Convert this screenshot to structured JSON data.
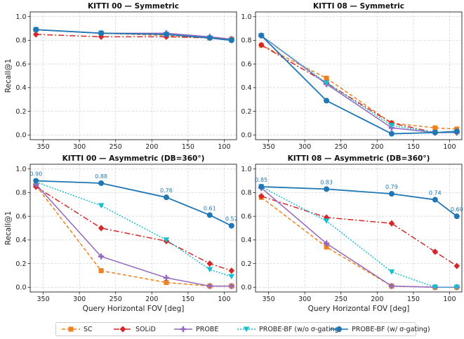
{
  "chart_data": [
    {
      "type": "line",
      "title": "KITTI 00 — Symmetric",
      "xlabel": "",
      "ylabel": "Recall@1",
      "xlim": [
        368,
        83
      ],
      "ylim": [
        -0.04,
        1.04
      ],
      "xticks": [
        350,
        300,
        250,
        200,
        150,
        100
      ],
      "yticks": [
        0.0,
        0.2,
        0.4,
        0.6,
        0.8,
        1.0
      ],
      "grid": true,
      "x": [
        360,
        270,
        180,
        120,
        90
      ],
      "series": [
        {
          "name": "SC",
          "values": [
            0.89,
            0.86,
            0.84,
            0.82,
            0.81
          ]
        },
        {
          "name": "SOLiD",
          "values": [
            0.85,
            0.83,
            0.83,
            0.82,
            0.81
          ]
        },
        {
          "name": "PROBE",
          "values": [
            0.89,
            0.86,
            0.86,
            0.83,
            0.81
          ]
        },
        {
          "name": "PROBE-BF (w/o σ-gating)",
          "values": [
            0.89,
            0.86,
            0.85,
            0.82,
            0.8
          ]
        },
        {
          "name": "PROBE-BF (w/ σ-gating)",
          "values": [
            0.89,
            0.86,
            0.85,
            0.82,
            0.8
          ]
        }
      ]
    },
    {
      "type": "line",
      "title": "KITTI 08 — Symmetric",
      "xlabel": "",
      "ylabel": "",
      "xlim": [
        368,
        83
      ],
      "ylim": [
        -0.04,
        1.04
      ],
      "xticks": [
        350,
        300,
        250,
        200,
        150,
        100
      ],
      "yticks": [
        0.0,
        0.2,
        0.4,
        0.6,
        0.8,
        1.0
      ],
      "grid": true,
      "x": [
        360,
        270,
        180,
        120,
        90
      ],
      "series": [
        {
          "name": "SC",
          "values": [
            0.76,
            0.48,
            0.1,
            0.06,
            0.05
          ]
        },
        {
          "name": "SOLiD",
          "values": [
            0.76,
            0.44,
            0.1,
            0.02,
            0.02
          ]
        },
        {
          "name": "PROBE",
          "values": [
            0.84,
            0.43,
            0.06,
            0.02,
            0.02
          ]
        },
        {
          "name": "PROBE-BF (w/o σ-gating)",
          "values": [
            0.84,
            0.44,
            0.08,
            0.02,
            0.02
          ]
        },
        {
          "name": "PROBE-BF (w/ σ-gating)",
          "values": [
            0.84,
            0.29,
            0.01,
            0.02,
            0.03
          ]
        }
      ]
    },
    {
      "type": "line",
      "title": "KITTI 00 — Asymmetric (DB=360°)",
      "xlabel": "Query Horizontal FOV [deg]",
      "ylabel": "Recall@1",
      "xlim": [
        368,
        83
      ],
      "ylim": [
        -0.04,
        1.04
      ],
      "xticks": [
        350,
        300,
        250,
        200,
        150,
        100
      ],
      "yticks": [
        0.0,
        0.2,
        0.4,
        0.6,
        0.8,
        1.0
      ],
      "grid": true,
      "x": [
        360,
        270,
        180,
        120,
        90
      ],
      "annotations": [
        "0.90",
        "0.88",
        "0.76",
        "0.61",
        "0.52"
      ],
      "series": [
        {
          "name": "SC",
          "values": [
            0.86,
            0.14,
            0.04,
            0.01,
            0.01
          ]
        },
        {
          "name": "SOLiD",
          "values": [
            0.85,
            0.5,
            0.39,
            0.2,
            0.14
          ]
        },
        {
          "name": "PROBE",
          "values": [
            0.87,
            0.26,
            0.08,
            0.01,
            0.01
          ]
        },
        {
          "name": "PROBE-BF (w/o σ-gating)",
          "values": [
            0.89,
            0.69,
            0.4,
            0.15,
            0.09
          ]
        },
        {
          "name": "PROBE-BF (w/ σ-gating)",
          "values": [
            0.9,
            0.88,
            0.76,
            0.61,
            0.52
          ]
        }
      ]
    },
    {
      "type": "line",
      "title": "KITTI 08 — Asymmetric (DB=360°)",
      "xlabel": "Query Horizontal FOV [deg]",
      "ylabel": "",
      "xlim": [
        368,
        83
      ],
      "ylim": [
        -0.04,
        1.04
      ],
      "xticks": [
        350,
        300,
        250,
        200,
        150,
        100
      ],
      "yticks": [
        0.0,
        0.2,
        0.4,
        0.6,
        0.8,
        1.0
      ],
      "grid": true,
      "x": [
        360,
        270,
        180,
        120,
        90
      ],
      "annotations": [
        "0.85",
        "0.83",
        "0.79",
        "0.74",
        "0.60"
      ],
      "series": [
        {
          "name": "SC",
          "values": [
            0.76,
            0.34,
            0.01,
            0.0,
            0.0
          ]
        },
        {
          "name": "SOLiD",
          "values": [
            0.77,
            0.59,
            0.54,
            0.3,
            0.18
          ]
        },
        {
          "name": "PROBE",
          "values": [
            0.84,
            0.37,
            0.01,
            0.0,
            0.0
          ]
        },
        {
          "name": "PROBE-BF (w/o σ-gating)",
          "values": [
            0.85,
            0.56,
            0.13,
            0.0,
            0.0
          ]
        },
        {
          "name": "PROBE-BF (w/ σ-gating)",
          "values": [
            0.85,
            0.83,
            0.79,
            0.74,
            0.6
          ]
        }
      ]
    }
  ],
  "series_styles": [
    {
      "color": "#f0821e",
      "dash": "5,3",
      "marker": "square"
    },
    {
      "color": "#d62728",
      "dash": "8,3,2,3",
      "marker": "diamond"
    },
    {
      "color": "#9467bd",
      "dash": "",
      "marker": "plus"
    },
    {
      "color": "#17becf",
      "dash": "2,2",
      "marker": "triangle-down"
    },
    {
      "color": "#1f77b4",
      "dash": "",
      "marker": "circle"
    }
  ],
  "legend": {
    "placement": "bottom-center",
    "items": [
      "SC",
      "SOLiD",
      "PROBE",
      "PROBE-BF (w/o σ-gating)",
      "PROBE-BF (w/ σ-gating)"
    ]
  },
  "annotation_color": "#1f77b4"
}
